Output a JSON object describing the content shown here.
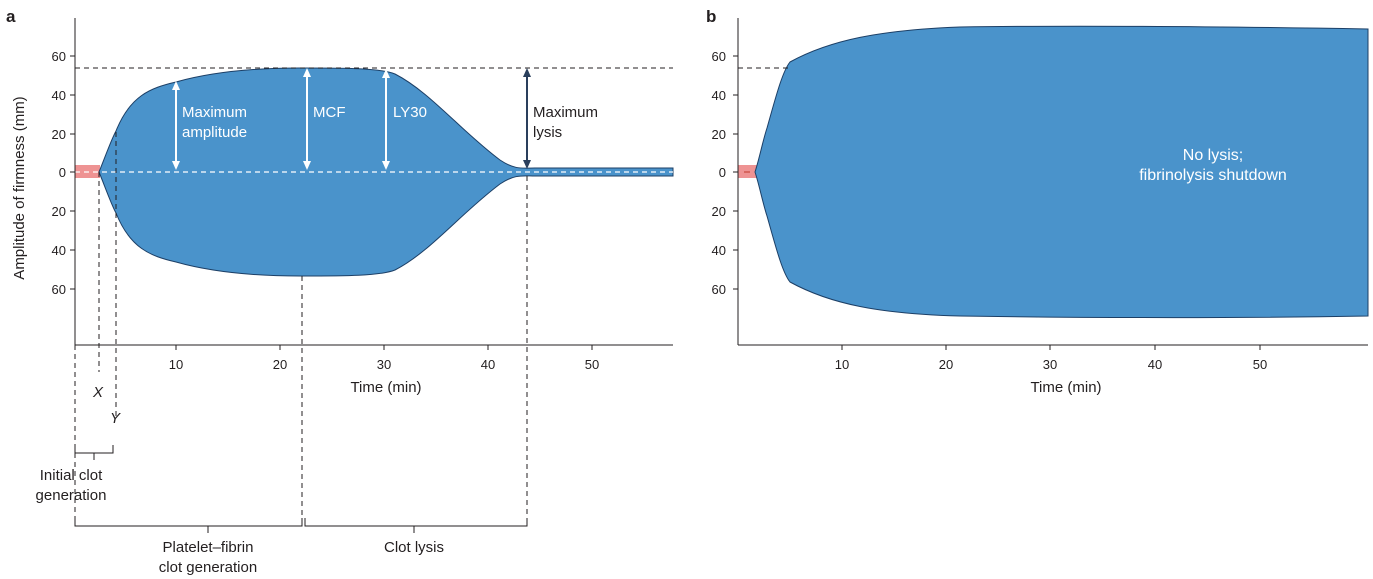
{
  "colors": {
    "clot_fill": "#4a93cb",
    "clot_edge": "#1c3f66",
    "initial_fill": "#9ccbe9",
    "baseline_red": "#ee9393",
    "axis": "#231f20",
    "dark_arrow": "#2a3f5c",
    "white": "#ffffff"
  },
  "panel_a": {
    "label": "a",
    "ylabel": "Amplitude of firmness (mm)",
    "xlabel": "Time (min)",
    "y_ticks_upper": [
      "60",
      "40",
      "20",
      "0"
    ],
    "y_ticks_lower": [
      "20",
      "40",
      "60"
    ],
    "x_ticks": [
      "10",
      "20",
      "30",
      "40",
      "50"
    ],
    "annotations": {
      "max_amplitude_line1": "Maximum",
      "max_amplitude_line2": "amplitude",
      "mcf": "MCF",
      "ly30": "LY30",
      "max_lysis_line1": "Maximum",
      "max_lysis_line2": "lysis",
      "x_mark": "X",
      "y_mark": "Y"
    },
    "phases": {
      "initial_line1": "Initial clot",
      "initial_line2": "generation",
      "platelet_line1": "Platelet–fibrin",
      "platelet_line2": "clot generation",
      "lysis": "Clot lysis"
    }
  },
  "panel_b": {
    "label": "b",
    "xlabel": "Time (min)",
    "y_ticks_upper": [
      "60",
      "40",
      "20",
      "0"
    ],
    "y_ticks_lower": [
      "20",
      "40",
      "60"
    ],
    "x_ticks": [
      "10",
      "20",
      "30",
      "40",
      "50"
    ],
    "note_line1": "No lysis;",
    "note_line2": "fibrinolysis shutdown"
  }
}
